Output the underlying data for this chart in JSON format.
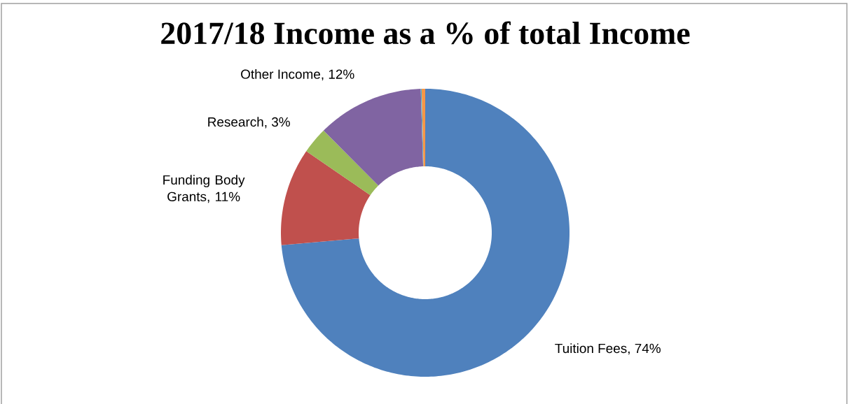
{
  "chart_data": {
    "type": "donut",
    "title": "2017/18 Income as a % of total Income",
    "categories": [
      "Tuition Fees, 74%",
      "Funding Body Grants, 11%",
      "Research, 3%",
      "Other Income, 12%",
      null,
      null
    ],
    "values": [
      74,
      11,
      3,
      12,
      0.1,
      0.4
    ],
    "colors": [
      "#4f81bd",
      "#c0504d",
      "#9bbb59",
      "#8064a2",
      "#4bacc6",
      "#f79646"
    ]
  }
}
